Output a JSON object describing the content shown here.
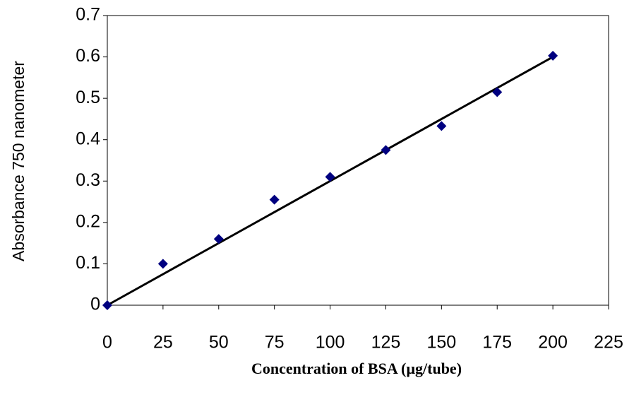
{
  "chart_data": {
    "type": "scatter",
    "x_label": "Concentration of BSA (µg/tube)",
    "y_label": "Absorbance 750  nanometer",
    "series": [
      {
        "color": "#000080",
        "x": [
          0,
          25,
          50,
          75,
          100,
          125,
          150,
          175,
          200
        ],
        "values": [
          0,
          0.1,
          0.16,
          0.255,
          0.31,
          0.375,
          0.433,
          0.515,
          0.603
        ]
      }
    ],
    "trendline": {
      "color": "#000000",
      "x": [
        0,
        200
      ],
      "values": [
        0,
        0.6
      ]
    },
    "xlim": [
      0,
      225
    ],
    "xticks": [
      0,
      25,
      50,
      75,
      100,
      125,
      150,
      175,
      200,
      225
    ],
    "ylim": [
      0,
      0.7
    ],
    "yticks": [
      0,
      0.1,
      0.2,
      0.3,
      0.4,
      0.5,
      0.6,
      0.7
    ]
  }
}
